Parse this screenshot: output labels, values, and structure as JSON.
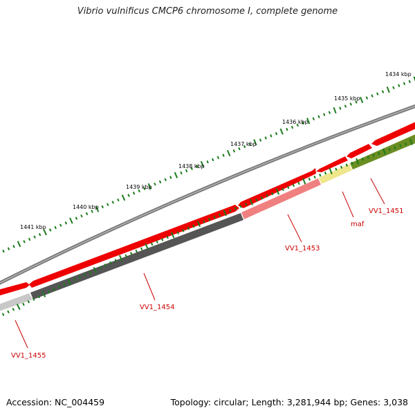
{
  "title": "Vibrio vulnificus CMCP6 chromosome I, complete genome",
  "footer": {
    "accession": "Accession: NC_004459",
    "stats": "Topology: circular; Length: 3,281,944 bp; Genes: 3,038"
  },
  "ruler": {
    "labels": [
      "1434 kbp",
      "1435 kbp",
      "1436 kbp",
      "1437 kbp",
      "1438 kbp",
      "1439 kbp",
      "1440 kbp",
      "1441 kbp"
    ],
    "tick_color": "#1a7a1a"
  },
  "genes": [
    {
      "name": "VV1_1451"
    },
    {
      "name": "maf"
    },
    {
      "name": "VV1_1453"
    },
    {
      "name": "VV1_1454"
    },
    {
      "name": "VV1_1455"
    }
  ],
  "colors": {
    "backbone": "#777777",
    "cds_red": "#ee0000",
    "gene_olive": "#6b8e23",
    "gene_yellow": "#f0e68c",
    "gene_pink": "#f08080",
    "gene_dark_gray": "#555555",
    "gene_light_gray": "#c8c8c8",
    "label_red": "#cc0000"
  }
}
